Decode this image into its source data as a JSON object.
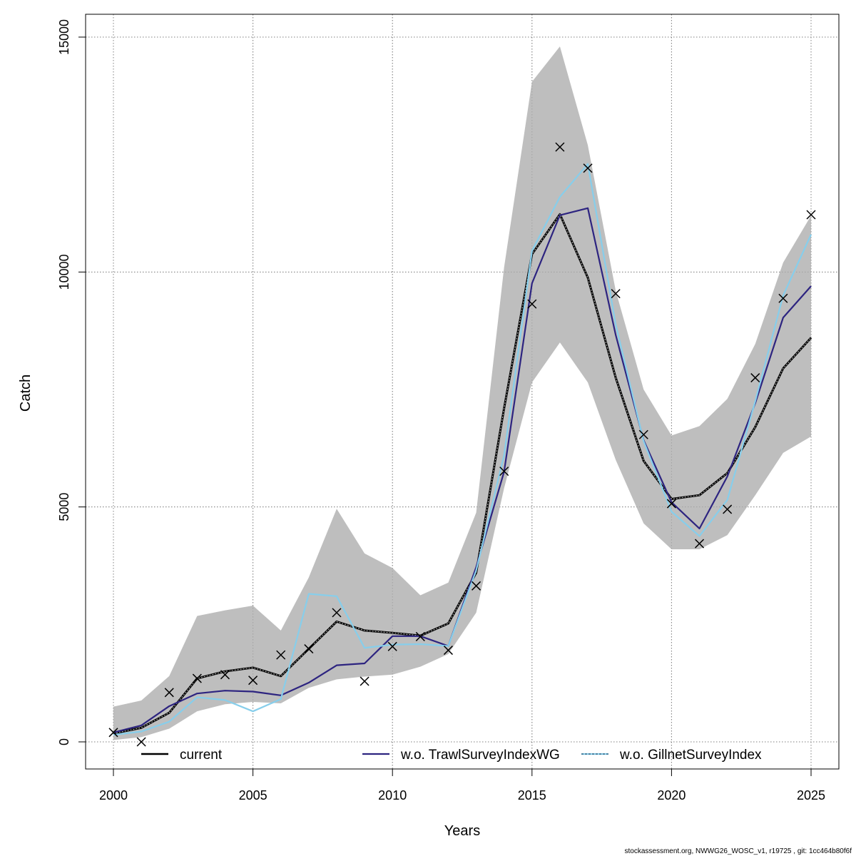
{
  "chart_data": {
    "type": "line",
    "xlabel": "Years",
    "ylabel": "Catch",
    "xlim": [
      2000,
      2025
    ],
    "ylim": [
      0,
      15000
    ],
    "x_ticks": [
      2000,
      2005,
      2010,
      2015,
      2020,
      2025
    ],
    "y_ticks": [
      0,
      5000,
      10000,
      15000
    ],
    "grid": true,
    "legend_position": "bottom",
    "x": [
      2000,
      2001,
      2002,
      2003,
      2004,
      2005,
      2006,
      2007,
      2008,
      2009,
      2010,
      2011,
      2012,
      2013,
      2014,
      2015,
      2016,
      2017,
      2018,
      2019,
      2020,
      2021,
      2022,
      2023,
      2024,
      2025
    ],
    "confidence_band": {
      "color": "#bebebe",
      "lower": [
        40,
        100,
        280,
        650,
        800,
        850,
        820,
        1150,
        1330,
        1390,
        1430,
        1600,
        1870,
        2750,
        5400,
        7650,
        8500,
        7650,
        6000,
        4650,
        4100,
        4100,
        4400,
        5250,
        6150,
        6500
      ],
      "upper": [
        750,
        880,
        1400,
        2680,
        2800,
        2900,
        2370,
        3500,
        4960,
        4010,
        3700,
        3120,
        3390,
        4880,
        10100,
        14050,
        14800,
        12700,
        9600,
        7500,
        6520,
        6720,
        7300,
        8470,
        10200,
        11200
      ]
    },
    "series": [
      {
        "name": "current",
        "color": "#000000",
        "values": [
          180,
          300,
          620,
          1350,
          1500,
          1580,
          1400,
          1980,
          2560,
          2370,
          2320,
          2260,
          2520,
          3600,
          7100,
          10380,
          11230,
          9880,
          7750,
          5980,
          5170,
          5250,
          5720,
          6700,
          7950,
          8600
        ]
      },
      {
        "name": "w.o. TrawlSurveyIndexWG",
        "color": "#2d2480",
        "values": [
          200,
          350,
          760,
          1030,
          1090,
          1070,
          990,
          1260,
          1630,
          1670,
          2250,
          2250,
          2040,
          3720,
          5750,
          9760,
          11210,
          11360,
          8660,
          6420,
          5100,
          4540,
          5650,
          7210,
          9030,
          9700
        ]
      },
      {
        "name": "w.o. GillnetSurveyIndex",
        "color": "#87ceeb",
        "values": [
          150,
          220,
          430,
          950,
          890,
          650,
          910,
          3150,
          3100,
          2000,
          2070,
          2080,
          2040,
          3650,
          6100,
          10450,
          11600,
          12300,
          8880,
          6400,
          4900,
          4380,
          5150,
          7250,
          9500,
          10800
        ]
      }
    ],
    "observations": {
      "marker": "x",
      "color": "#000000",
      "values": [
        200,
        0,
        1050,
        1350,
        1430,
        1310,
        1850,
        1980,
        2750,
        1290,
        2030,
        2240,
        1950,
        3320,
        5760,
        9320,
        12660,
        12210,
        9540,
        6540,
        5070,
        4220,
        4950,
        7750,
        9440,
        11220
      ]
    },
    "footer": "stockassessment.org, NWWG26_WOSC_v1, r19725 , git: 1cc464b80f6f"
  }
}
